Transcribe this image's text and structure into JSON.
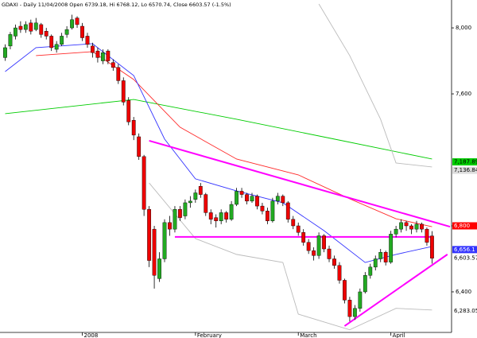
{
  "chart_data": {
    "type": "candlestick",
    "title": "GDAXI - Daily 11/04/2008 Open 6739.18, Hi 6768.12, Lo 6570.74, Close 6603.57 (-1.5%)",
    "categories": [
      null,
      null,
      null,
      null,
      null,
      null,
      null,
      null,
      null,
      null,
      null,
      null,
      null,
      null,
      null,
      "2008",
      null,
      null,
      null,
      null,
      null,
      null,
      null,
      null,
      null,
      null,
      null,
      null,
      null,
      null,
      null,
      null,
      null,
      null,
      null,
      null,
      null,
      "February",
      null,
      null,
      null,
      null,
      null,
      null,
      null,
      null,
      null,
      null,
      null,
      null,
      null,
      null,
      null,
      null,
      null,
      null,
      null,
      "March",
      null,
      null,
      null,
      null,
      null,
      null,
      null,
      null,
      null,
      null,
      null,
      null,
      null,
      null,
      null,
      null,
      null,
      "April",
      null,
      null,
      null,
      null,
      null,
      null,
      null,
      null
    ],
    "ohlc": [
      [
        7820,
        7900,
        7800,
        7880
      ],
      [
        7890,
        7975,
        7870,
        7960
      ],
      [
        7950,
        8020,
        7930,
        8000
      ],
      [
        8010,
        8040,
        7970,
        7990
      ],
      [
        7990,
        8040,
        7970,
        8020
      ],
      [
        8030,
        8050,
        7960,
        7980
      ],
      [
        7990,
        8060,
        7980,
        8030
      ],
      [
        8020,
        8030,
        7940,
        7960
      ],
      [
        7980,
        8000,
        7930,
        7950
      ],
      [
        7950,
        7960,
        7860,
        7880
      ],
      [
        7870,
        7920,
        7850,
        7900
      ],
      [
        7900,
        7970,
        7890,
        7950
      ],
      [
        7960,
        8010,
        7940,
        7990
      ],
      [
        8000,
        8080,
        7990,
        8050
      ],
      [
        8060,
        8070,
        8000,
        8020
      ],
      [
        8010,
        8030,
        7920,
        7940
      ],
      [
        7950,
        7970,
        7880,
        7900
      ],
      [
        7890,
        7910,
        7820,
        7850
      ],
      [
        7860,
        7880,
        7790,
        7820
      ],
      [
        7800,
        7870,
        7780,
        7850
      ],
      [
        7860,
        7870,
        7780,
        7800
      ],
      [
        7790,
        7810,
        7740,
        7760
      ],
      [
        7760,
        7780,
        7660,
        7680
      ],
      [
        7680,
        7700,
        7530,
        7550
      ],
      [
        7560,
        7580,
        7410,
        7430
      ],
      [
        7440,
        7460,
        7320,
        7350
      ],
      [
        7340,
        7360,
        7200,
        7220
      ],
      [
        7220,
        7230,
        6860,
        6900
      ],
      [
        6900,
        6920,
        6550,
        6590
      ],
      [
        6780,
        6800,
        6420,
        6500
      ],
      [
        6480,
        6640,
        6460,
        6600
      ],
      [
        6600,
        6840,
        6580,
        6820
      ],
      [
        6820,
        6860,
        6740,
        6780
      ],
      [
        6780,
        6920,
        6760,
        6900
      ],
      [
        6900,
        6920,
        6830,
        6850
      ],
      [
        6860,
        6960,
        6840,
        6940
      ],
      [
        6940,
        6980,
        6910,
        6950
      ],
      [
        6960,
        7020,
        6940,
        7000
      ],
      [
        7040,
        7060,
        6970,
        6990
      ],
      [
        6990,
        7000,
        6860,
        6880
      ],
      [
        6880,
        6900,
        6810,
        6840
      ],
      [
        6850,
        6870,
        6790,
        6830
      ],
      [
        6830,
        6900,
        6810,
        6880
      ],
      [
        6880,
        6890,
        6820,
        6840
      ],
      [
        6840,
        6950,
        6830,
        6930
      ],
      [
        6930,
        7030,
        6920,
        7010
      ],
      [
        7010,
        7030,
        6970,
        6990
      ],
      [
        6990,
        7000,
        6930,
        6950
      ],
      [
        6950,
        7000,
        6940,
        6980
      ],
      [
        6980,
        6990,
        6900,
        6920
      ],
      [
        6920,
        6940,
        6870,
        6890
      ],
      [
        6890,
        6910,
        6810,
        6830
      ],
      [
        6830,
        6970,
        6820,
        6950
      ],
      [
        6950,
        7000,
        6930,
        6980
      ],
      [
        6980,
        6990,
        6920,
        6940
      ],
      [
        6940,
        6950,
        6820,
        6840
      ],
      [
        6840,
        6860,
        6780,
        6800
      ],
      [
        6800,
        6820,
        6740,
        6760
      ],
      [
        6760,
        6780,
        6680,
        6700
      ],
      [
        6700,
        6720,
        6630,
        6650
      ],
      [
        6650,
        6670,
        6590,
        6620
      ],
      [
        6620,
        6760,
        6600,
        6740
      ],
      [
        6740,
        6750,
        6640,
        6660
      ],
      [
        6660,
        6680,
        6580,
        6600
      ],
      [
        6600,
        6620,
        6540,
        6560
      ],
      [
        6560,
        6580,
        6450,
        6470
      ],
      [
        6470,
        6480,
        6330,
        6350
      ],
      [
        6350,
        6370,
        6220,
        6250
      ],
      [
        6250,
        6320,
        6230,
        6300
      ],
      [
        6300,
        6420,
        6280,
        6400
      ],
      [
        6400,
        6520,
        6390,
        6500
      ],
      [
        6500,
        6570,
        6480,
        6550
      ],
      [
        6550,
        6620,
        6530,
        6600
      ],
      [
        6600,
        6660,
        6580,
        6640
      ],
      [
        6640,
        6650,
        6560,
        6580
      ],
      [
        6580,
        6770,
        6570,
        6750
      ],
      [
        6750,
        6800,
        6730,
        6780
      ],
      [
        6780,
        6840,
        6760,
        6820
      ],
      [
        6820,
        6830,
        6770,
        6800
      ],
      [
        6800,
        6810,
        6750,
        6780
      ],
      [
        6780,
        6830,
        6760,
        6810
      ],
      [
        6810,
        6820,
        6760,
        6780
      ],
      [
        6780,
        6790,
        6680,
        6700
      ],
      [
        6739.18,
        6768.12,
        6570.74,
        6603.57
      ]
    ],
    "up_color": "#22aa22",
    "down_color": "#ee0000",
    "overlays": [
      {
        "color": "#00cc00",
        "x": [
          0,
          25,
          45,
          64,
          83
        ],
        "values": [
          7480,
          7566,
          7446,
          7326,
          7205
        ]
      },
      {
        "color": "#ff2a2a",
        "x": [
          6,
          17,
          25,
          34,
          45,
          57,
          67,
          76,
          83
        ],
        "values": [
          7832,
          7856,
          7687,
          7398,
          7205,
          7109,
          6964,
          6843,
          6795
        ]
      },
      {
        "color": "#3333ff",
        "x": [
          0,
          6,
          17,
          25,
          31,
          37,
          45,
          54,
          62,
          70,
          76,
          83
        ],
        "values": [
          7735,
          7880,
          7904,
          7711,
          7326,
          7085,
          7012,
          6940,
          6771,
          6578,
          6627,
          6675
        ]
      },
      {
        "color": "#bbbbbb",
        "x": [
          61,
          67,
          73,
          76,
          83
        ],
        "values": [
          8145,
          7832,
          7446,
          7181,
          7157
        ]
      },
      {
        "color": "#bbbbbb",
        "x": [
          28,
          37,
          45,
          54,
          57,
          67,
          76,
          83
        ],
        "values": [
          7060,
          6723,
          6627,
          6578,
          6265,
          6170,
          6300,
          6290
        ]
      },
      {
        "color": "#ff00ff",
        "x": [
          28,
          86.5
        ],
        "values": [
          7316,
          6795
        ]
      },
      {
        "color": "#ff00ff",
        "x": [
          33,
          83
        ],
        "values": [
          6733,
          6733
        ]
      },
      {
        "color": "#ff00ff",
        "x": [
          66,
          86
        ],
        "values": [
          6193,
          6627
        ]
      }
    ],
    "ylim": [
      6154,
      8169
    ],
    "xlim": [
      -1,
      86.8
    ],
    "yticks": [
      {
        "value": 6400,
        "label": "6,400"
      },
      {
        "value": 6800,
        "label": "6,800"
      },
      {
        "value": 7600,
        "label": "7,600"
      },
      {
        "value": 8000,
        "label": "8,000"
      }
    ],
    "price_labels": [
      {
        "value": 7187.89,
        "label": "7,187.89",
        "color": "#00cc00"
      },
      {
        "value": 7136.84,
        "label": "7,136.84",
        "color": "#dddddd"
      },
      {
        "value": 6800,
        "label": "6,800",
        "color": "#ff0000"
      },
      {
        "value": 6656.1,
        "label": "6,656.1",
        "color": "#3333ff"
      },
      {
        "value": 6603.57,
        "label": "6,603.57",
        "color": "#ffffff"
      },
      {
        "value": 6283.05,
        "label": "6,283.05",
        "color": "#ffffff"
      }
    ]
  }
}
